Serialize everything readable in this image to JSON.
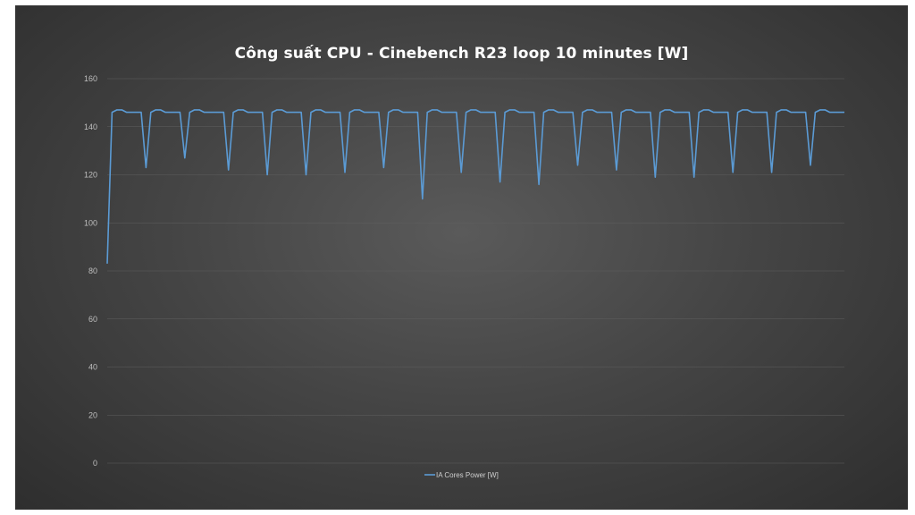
{
  "chart_data": {
    "type": "line",
    "title": "Công suất CPU - Cinebench R23 loop 10 minutes [W]",
    "xlabel": "",
    "ylabel": "",
    "ylim": [
      0,
      160
    ],
    "y_ticks": [
      0,
      20,
      40,
      60,
      80,
      100,
      120,
      140,
      160
    ],
    "grid": true,
    "legend_position": "bottom",
    "background": "#444444",
    "series": [
      {
        "name": "IA Cores Power [W]",
        "color": "#5b9bd5",
        "values": [
          83,
          146,
          147,
          147,
          146,
          146,
          146,
          146,
          123,
          146,
          147,
          147,
          146,
          146,
          146,
          146,
          127,
          146,
          147,
          147,
          146,
          146,
          146,
          146,
          146,
          122,
          146,
          147,
          147,
          146,
          146,
          146,
          146,
          120,
          146,
          147,
          147,
          146,
          146,
          146,
          146,
          120,
          146,
          147,
          147,
          146,
          146,
          146,
          146,
          121,
          146,
          147,
          147,
          146,
          146,
          146,
          146,
          123,
          146,
          147,
          147,
          146,
          146,
          146,
          146,
          110,
          146,
          147,
          147,
          146,
          146,
          146,
          146,
          121,
          146,
          147,
          147,
          146,
          146,
          146,
          146,
          117,
          146,
          147,
          147,
          146,
          146,
          146,
          146,
          116,
          146,
          147,
          147,
          146,
          146,
          146,
          146,
          124,
          146,
          147,
          147,
          146,
          146,
          146,
          146,
          122,
          146,
          147,
          147,
          146,
          146,
          146,
          146,
          119,
          146,
          147,
          147,
          146,
          146,
          146,
          146,
          119,
          146,
          147,
          147,
          146,
          146,
          146,
          146,
          121,
          146,
          147,
          147,
          146,
          146,
          146,
          146,
          121,
          146,
          147,
          147,
          146,
          146,
          146,
          146,
          124,
          146,
          147,
          147,
          146,
          146,
          146,
          146
        ]
      }
    ]
  }
}
